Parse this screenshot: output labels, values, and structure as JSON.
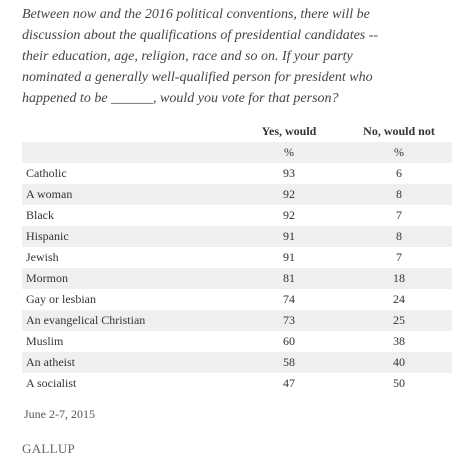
{
  "question": {
    "lines": [
      "Between now and the 2016 political conventions, there will be",
      "discussion about the qualifications of presidential candidates --",
      "their education, age, religion, race and so on. If your party",
      "nominated a generally well-qualified person for president who",
      "happened to be ______, would you vote for that person?"
    ]
  },
  "table": {
    "header": [
      "Yes, would",
      "No, would not"
    ],
    "units": [
      "%",
      "%"
    ],
    "rows": [
      [
        "Catholic",
        93,
        6
      ],
      [
        "A woman",
        92,
        8
      ],
      [
        "Black",
        92,
        7
      ],
      [
        "Hispanic",
        91,
        8
      ],
      [
        "Jewish",
        91,
        7
      ],
      [
        "Mormon",
        81,
        18
      ],
      [
        "Gay or lesbian",
        74,
        24
      ],
      [
        "An evangelical Christian",
        73,
        25
      ],
      [
        "Muslim",
        60,
        38
      ],
      [
        "An atheist",
        58,
        40
      ],
      [
        "A socialist",
        47,
        50
      ]
    ]
  },
  "footer": {
    "date": "June 2-7, 2015",
    "source": "GALLUP"
  }
}
